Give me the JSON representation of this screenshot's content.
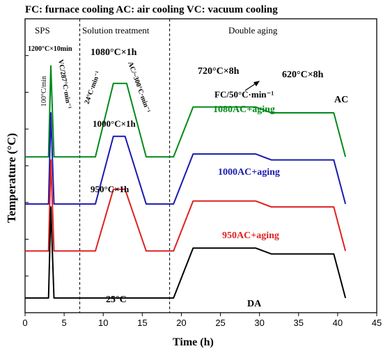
{
  "chart_data": {
    "type": "line",
    "title": "",
    "xlabel": "Time (h)",
    "ylabel": "Temperature (°C)",
    "xlim": [
      0,
      45
    ],
    "x_ticks": [
      0,
      5,
      10,
      15,
      20,
      25,
      30,
      35,
      40,
      45
    ],
    "y_ticks_count": 8,
    "grid": false,
    "legend_text": "FC: furnace cooling  AC: air cooling  VC: vacuum cooling",
    "stage_labels": [
      "SPS",
      "Solution treatment",
      "Double aging"
    ],
    "stage_boundaries_h": [
      7,
      18.5
    ],
    "annotations": {
      "sps": "1200°C×10min",
      "heat_rate": "100°C/min",
      "vc_rate": "VC/287°C·min⁻¹",
      "solution_heat_rate": "24°C·min⁻¹",
      "solution_ac_rate": "AC/~300°C·min⁻¹",
      "aging1": "720°C×8h",
      "aging2": "620°C×8h",
      "fc_rate": "FC/50°C·min⁻¹",
      "ac": "AC",
      "hold_1080": "1080°C×1h",
      "hold_1000": "1000°C×1h",
      "hold_950": "950°C×1h",
      "room_temp": "25°C"
    },
    "series": [
      {
        "name": "1080AC+aging",
        "color": "#008a1a",
        "x": [
          0,
          3,
          3.3,
          3.7,
          4.5,
          7,
          9,
          11.3,
          13,
          15.5,
          18.5,
          19,
          21.5,
          29.5,
          31.5,
          39.5,
          41
        ],
        "y": [
          0.53,
          0.53,
          0.84,
          0.53,
          0.53,
          0.53,
          0.53,
          0.78,
          0.78,
          0.53,
          0.53,
          0.53,
          0.7,
          0.7,
          0.68,
          0.68,
          0.53
        ]
      },
      {
        "name": "1000AC+aging",
        "color": "#1a1ab0",
        "x": [
          0,
          3,
          3.3,
          3.7,
          4.5,
          7,
          9,
          11.3,
          12.8,
          15.5,
          18.5,
          19,
          21.5,
          29.5,
          31.5,
          39.5,
          41
        ],
        "y": [
          0.37,
          0.37,
          0.68,
          0.37,
          0.37,
          0.37,
          0.37,
          0.6,
          0.6,
          0.37,
          0.37,
          0.37,
          0.54,
          0.54,
          0.52,
          0.52,
          0.37
        ]
      },
      {
        "name": "950AC+aging",
        "color": "#e02020",
        "x": [
          0,
          3,
          3.3,
          3.7,
          4.5,
          7,
          9,
          11.3,
          12.8,
          15.5,
          18.5,
          19,
          21.5,
          29.5,
          31.5,
          39.5,
          41
        ],
        "y": [
          0.21,
          0.21,
          0.52,
          0.21,
          0.21,
          0.21,
          0.21,
          0.42,
          0.42,
          0.21,
          0.21,
          0.21,
          0.38,
          0.38,
          0.36,
          0.36,
          0.21
        ]
      },
      {
        "name": "DA",
        "color": "#000000",
        "x": [
          0,
          3,
          3.3,
          3.7,
          4.5,
          7,
          18.5,
          19,
          21.5,
          29.5,
          31.5,
          39.5,
          41
        ],
        "y": [
          0.05,
          0.05,
          0.36,
          0.05,
          0.05,
          0.05,
          0.05,
          0.05,
          0.22,
          0.22,
          0.2,
          0.2,
          0.05
        ]
      }
    ]
  }
}
